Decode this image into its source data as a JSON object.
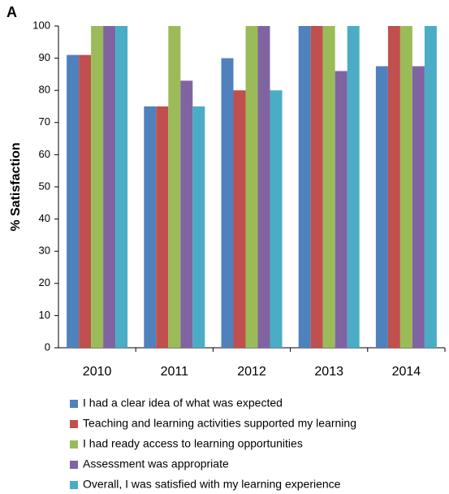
{
  "chart_data": {
    "type": "bar",
    "panel_label": "A",
    "ylabel": "% Satisfaction",
    "categories": [
      "2010",
      "2011",
      "2012",
      "2013",
      "2014"
    ],
    "series": [
      {
        "name": "I had a clear idea of what was expected",
        "color": "#4f81bd",
        "values": [
          91,
          75,
          90,
          100,
          87.5
        ]
      },
      {
        "name": "Teaching and learning activities supported my learning",
        "color": "#c0504d",
        "values": [
          91,
          75,
          80,
          100,
          100
        ]
      },
      {
        "name": "I had ready access to learning opportunities",
        "color": "#9bbb59",
        "values": [
          100,
          100,
          100,
          100,
          100
        ]
      },
      {
        "name": "Assessment was appropriate",
        "color": "#8064a2",
        "values": [
          100,
          83,
          100,
          86,
          87.5
        ]
      },
      {
        "name": "Overall, I was satisfied with my learning experience",
        "color": "#4bacc6",
        "values": [
          100,
          75,
          80,
          100,
          100
        ]
      }
    ],
    "ylim": [
      0,
      100
    ],
    "yticks": [
      0,
      10,
      20,
      30,
      40,
      50,
      60,
      70,
      80,
      90,
      100
    ],
    "grid": false,
    "legend": "bottom"
  }
}
